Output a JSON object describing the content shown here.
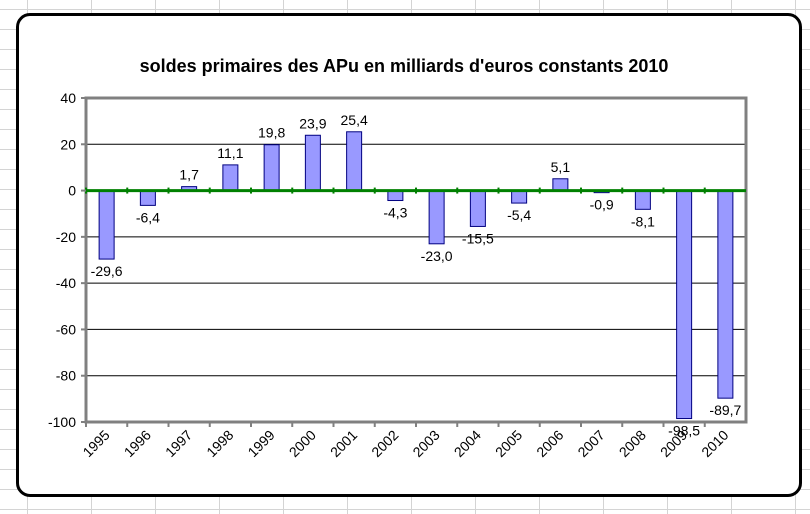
{
  "chart_data": {
    "type": "bar",
    "title": "soldes primaires des APu en milliards d'euros constants 2010",
    "xlabel": "",
    "ylabel": "",
    "categories": [
      "1995",
      "1996",
      "1997",
      "1998",
      "1999",
      "2000",
      "2001",
      "2002",
      "2003",
      "2004",
      "2005",
      "2006",
      "2007",
      "2008",
      "2009",
      "2010"
    ],
    "values": [
      -29.6,
      -6.4,
      1.7,
      11.1,
      19.8,
      23.9,
      25.4,
      -4.3,
      -23.0,
      -15.5,
      -5.4,
      5.1,
      -0.9,
      -8.1,
      -98.5,
      -89.7
    ],
    "data_labels": [
      "-29,6",
      "-6,4",
      "1,7",
      "11,1",
      "19,8",
      "23,9",
      "25,4",
      "-4,3",
      "-23,0",
      "-15,5",
      "-5,4",
      "5,1",
      "-0,9",
      "-8,1",
      "-98,5",
      "-89,7"
    ],
    "ylim": [
      -100,
      40
    ],
    "yticks": [
      40,
      20,
      0,
      -20,
      -40,
      -60,
      -80,
      -100
    ],
    "grid": true,
    "legend": "none",
    "colors": {
      "bar_fill": "#9999ff",
      "bar_stroke": "#000080",
      "zero_line": "#008000",
      "plot_border": "#808080",
      "gridline": "#000000"
    }
  }
}
